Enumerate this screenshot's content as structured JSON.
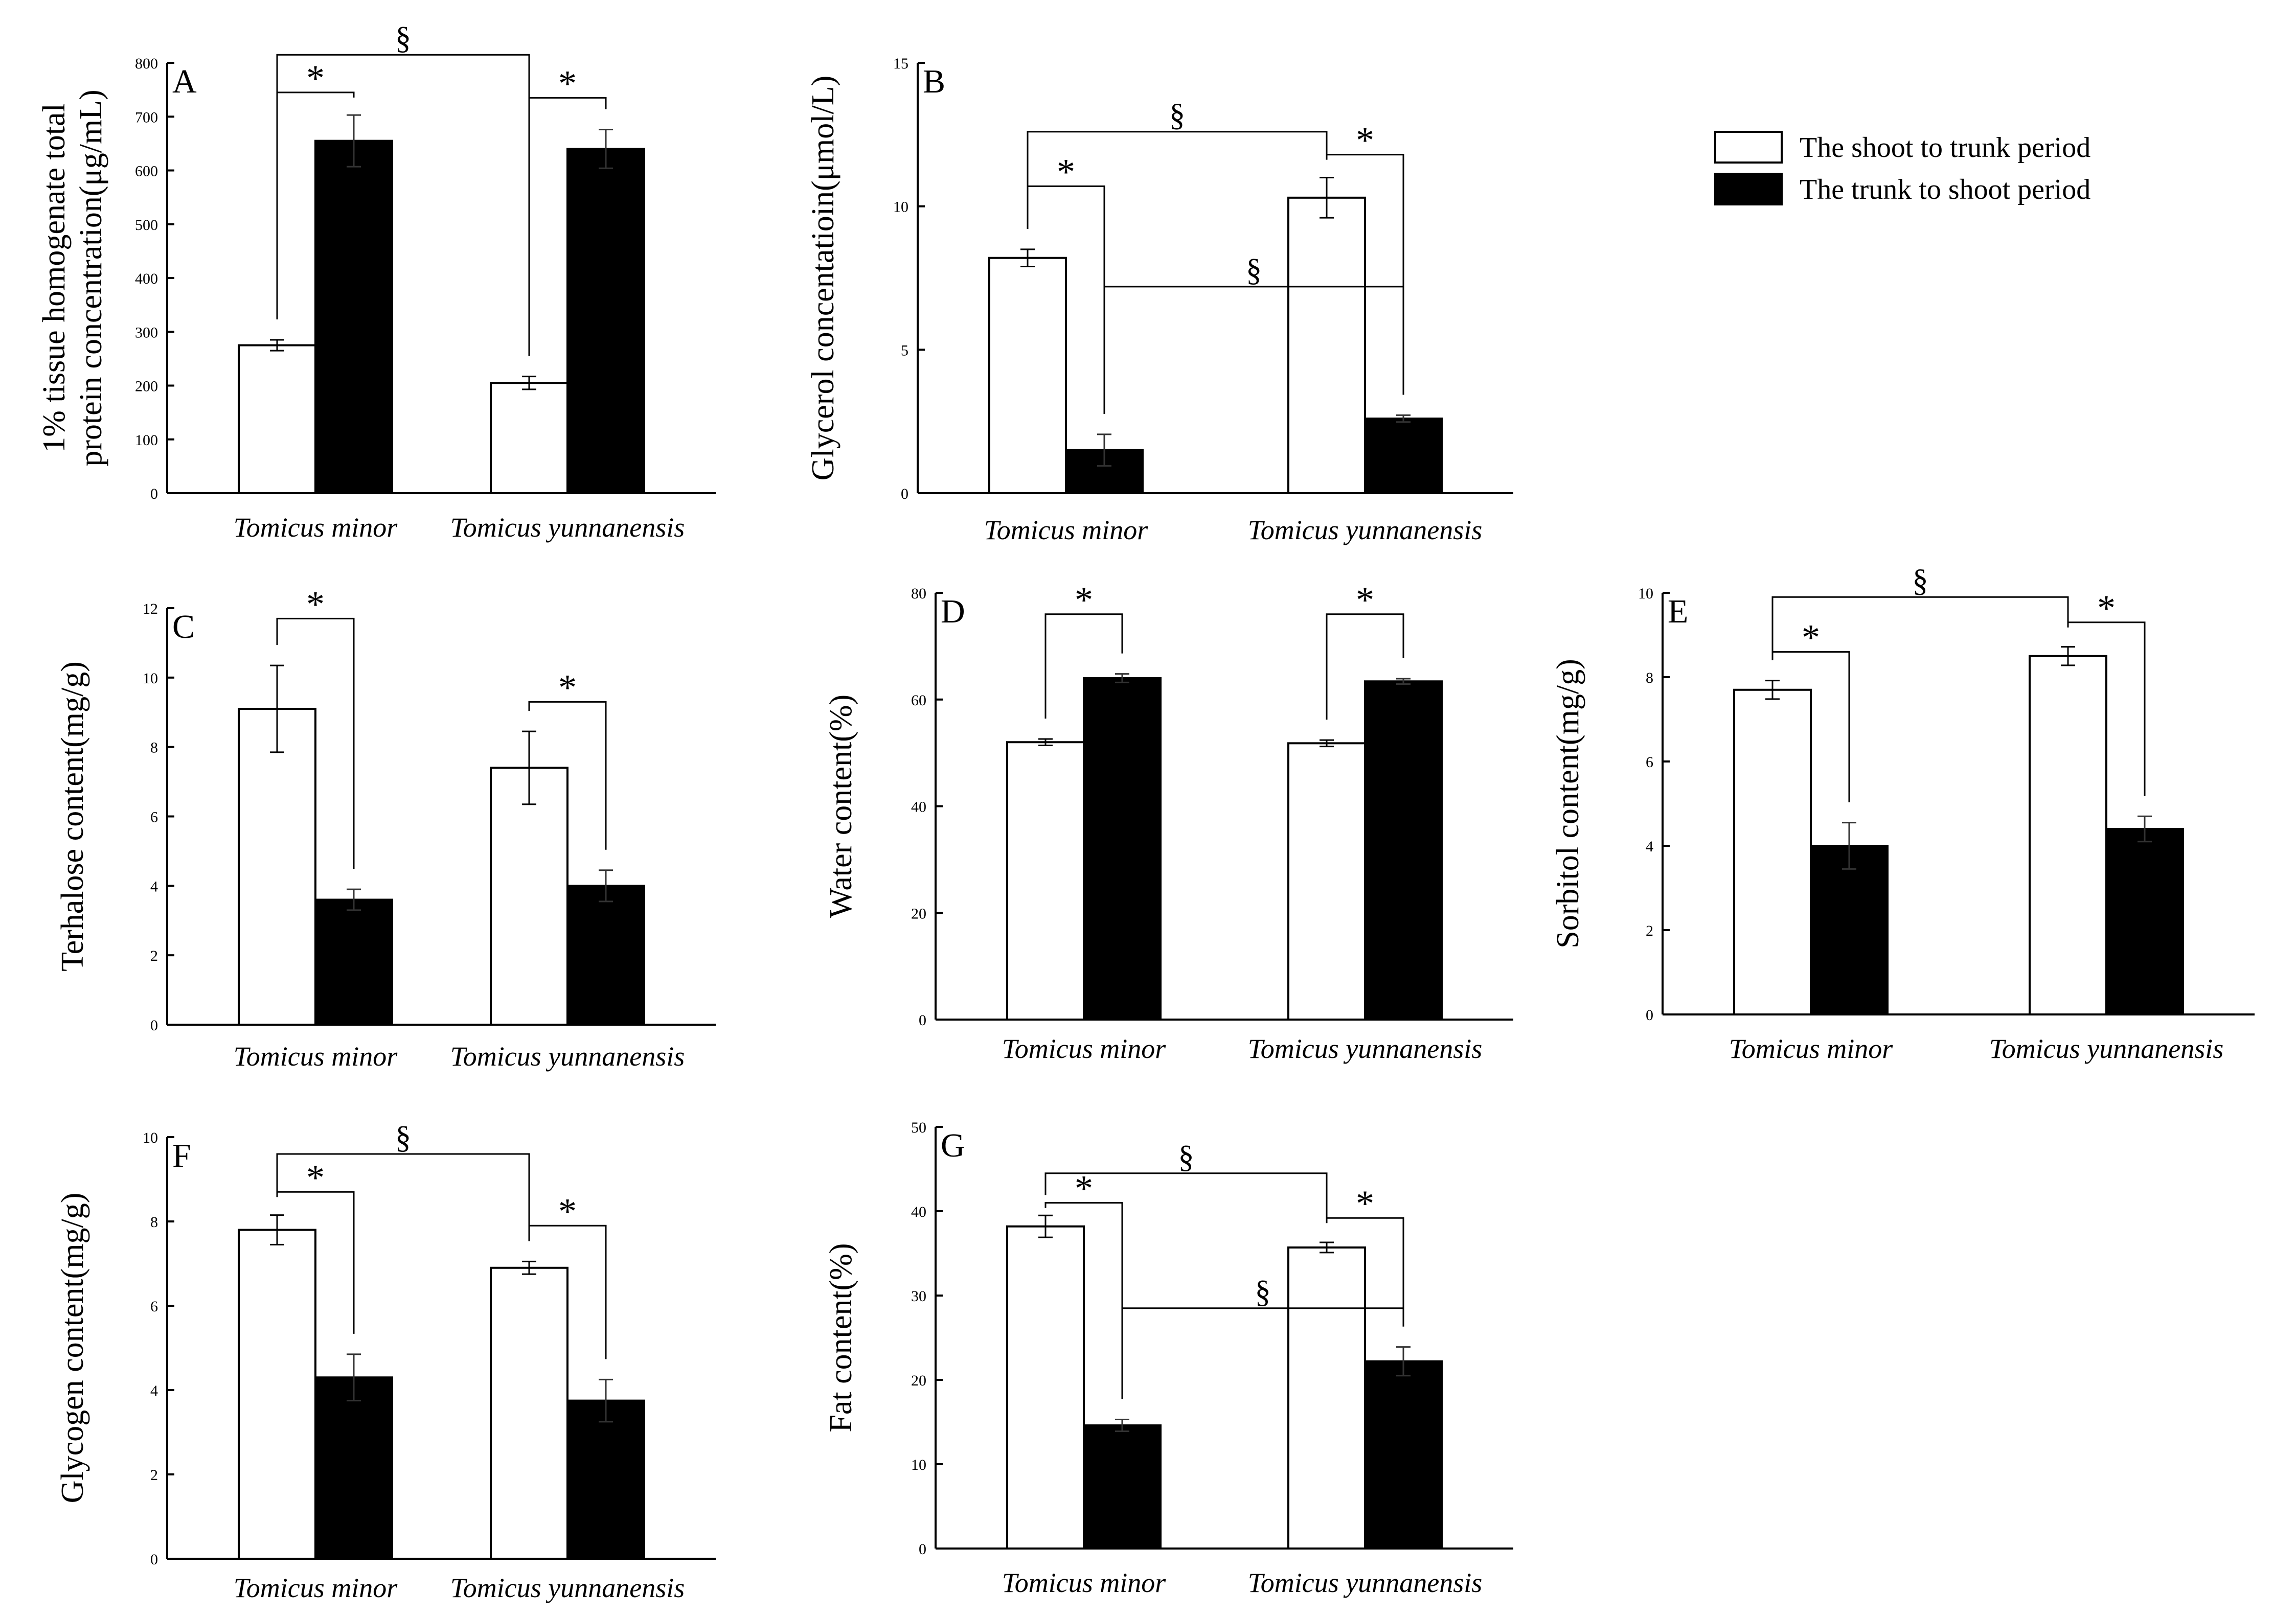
{
  "legend": {
    "items": [
      {
        "label": "The shoot to trunk period",
        "color": "#ffffff"
      },
      {
        "label": "The trunk to shoot period",
        "color": "#000000"
      }
    ]
  },
  "chart_data": [
    {
      "panel": "A",
      "type": "bar",
      "ylabel_lines": [
        "1% tissue homogenate total",
        "protein concentration(μg/mL)"
      ],
      "categories": [
        "Tomicus minor",
        "Tomicus yunnanensis"
      ],
      "ylim": [
        0,
        800
      ],
      "yticks": [
        0,
        100,
        200,
        300,
        400,
        500,
        600,
        700,
        800
      ],
      "series": [
        {
          "name": "The shoot to trunk period",
          "values": [
            275,
            205
          ],
          "errors": [
            10,
            12
          ]
        },
        {
          "name": "The trunk to shoot period",
          "values": [
            655,
            640
          ],
          "errors": [
            48,
            36
          ]
        }
      ],
      "annotations": [
        {
          "symbol": "*",
          "type": "within",
          "group": 0,
          "top": 745
        },
        {
          "symbol": "*",
          "type": "within",
          "group": 1,
          "top": 735
        },
        {
          "symbol": "§",
          "type": "across",
          "series": 0,
          "top": 815
        }
      ]
    },
    {
      "panel": "B",
      "type": "bar",
      "ylabel_lines": [
        "Glycerol concentatioin(μmol/L)"
      ],
      "categories": [
        "Tomicus minor",
        "Tomicus yunnanensis"
      ],
      "ylim": [
        0,
        15
      ],
      "yticks": [
        0,
        5,
        10,
        15
      ],
      "series": [
        {
          "name": "The shoot to trunk period",
          "values": [
            8.2,
            10.3
          ],
          "errors": [
            0.3,
            0.7
          ]
        },
        {
          "name": "The trunk to shoot period",
          "values": [
            1.5,
            2.6
          ],
          "errors": [
            0.55,
            0.12
          ]
        }
      ],
      "annotations": [
        {
          "symbol": "*",
          "type": "within",
          "group": 0,
          "top": 10.7
        },
        {
          "symbol": "*",
          "type": "within",
          "group": 1,
          "top": 11.8
        },
        {
          "symbol": "§",
          "type": "across",
          "series": 0,
          "top": 12.6
        },
        {
          "symbol": "§",
          "type": "across",
          "series": 1,
          "top": 7.2
        }
      ]
    },
    {
      "panel": "C",
      "type": "bar",
      "ylabel_lines": [
        "Terhalose content(mg/g)"
      ],
      "categories": [
        "Tomicus minor",
        "Tomicus yunnanensis"
      ],
      "ylim": [
        0,
        12
      ],
      "yticks": [
        0,
        2,
        4,
        6,
        8,
        10,
        12
      ],
      "series": [
        {
          "name": "The shoot to trunk period",
          "values": [
            9.1,
            7.4
          ],
          "errors": [
            1.25,
            1.05
          ]
        },
        {
          "name": "The trunk to shoot period",
          "values": [
            3.6,
            4.0
          ],
          "errors": [
            0.3,
            0.45
          ]
        }
      ],
      "annotations": [
        {
          "symbol": "*",
          "type": "within",
          "group": 0,
          "top": 11.7
        },
        {
          "symbol": "*",
          "type": "within",
          "group": 1,
          "top": 9.3
        }
      ]
    },
    {
      "panel": "D",
      "type": "bar",
      "ylabel_lines": [
        "Water content(%)"
      ],
      "categories": [
        "Tomicus minor",
        "Tomicus yunnanensis"
      ],
      "ylim": [
        0,
        80
      ],
      "yticks": [
        0,
        20,
        40,
        60,
        80
      ],
      "series": [
        {
          "name": "The shoot to trunk period",
          "values": [
            52,
            51.8
          ],
          "errors": [
            0.6,
            0.6
          ]
        },
        {
          "name": "The trunk to shoot period",
          "values": [
            64,
            63.4
          ],
          "errors": [
            0.8,
            0.5
          ]
        }
      ],
      "annotations": [
        {
          "symbol": "*",
          "type": "within",
          "group": 0,
          "top": 76
        },
        {
          "symbol": "*",
          "type": "within",
          "group": 1,
          "top": 76
        }
      ]
    },
    {
      "panel": "E",
      "type": "bar",
      "ylabel_lines": [
        "Sorbitol content(mg/g)"
      ],
      "categories": [
        "Tomicus minor",
        "Tomicus yunnanensis"
      ],
      "ylim": [
        0,
        10
      ],
      "yticks": [
        0,
        2,
        4,
        6,
        8,
        10
      ],
      "series": [
        {
          "name": "The shoot to trunk period",
          "values": [
            7.7,
            8.5
          ],
          "errors": [
            0.22,
            0.22
          ]
        },
        {
          "name": "The trunk to shoot period",
          "values": [
            4.0,
            4.4
          ],
          "errors": [
            0.55,
            0.3
          ]
        }
      ],
      "annotations": [
        {
          "symbol": "*",
          "type": "within",
          "group": 0,
          "top": 8.6
        },
        {
          "symbol": "*",
          "type": "within",
          "group": 1,
          "top": 9.3
        },
        {
          "symbol": "§",
          "type": "across",
          "series": 0,
          "top": 9.9
        }
      ]
    },
    {
      "panel": "F",
      "type": "bar",
      "ylabel_lines": [
        "Glycogen content(mg/g)"
      ],
      "categories": [
        "Tomicus minor",
        "Tomicus yunnanensis"
      ],
      "ylim": [
        0,
        10
      ],
      "yticks": [
        0,
        2,
        4,
        6,
        8,
        10
      ],
      "series": [
        {
          "name": "The shoot to trunk period",
          "values": [
            7.8,
            6.9
          ],
          "errors": [
            0.35,
            0.15
          ]
        },
        {
          "name": "The trunk to shoot period",
          "values": [
            4.3,
            3.75
          ],
          "errors": [
            0.55,
            0.5
          ]
        }
      ],
      "annotations": [
        {
          "symbol": "*",
          "type": "within",
          "group": 0,
          "top": 8.7
        },
        {
          "symbol": "*",
          "type": "within",
          "group": 1,
          "top": 7.9
        },
        {
          "symbol": "§",
          "type": "across",
          "series": 0,
          "top": 9.6
        }
      ]
    },
    {
      "panel": "G",
      "type": "bar",
      "ylabel_lines": [
        "Fat content(%)"
      ],
      "categories": [
        "Tomicus minor",
        "Tomicus yunnanensis"
      ],
      "ylim": [
        0,
        50
      ],
      "yticks": [
        0,
        10,
        20,
        30,
        40,
        50
      ],
      "series": [
        {
          "name": "The shoot to trunk period",
          "values": [
            38.2,
            35.7
          ],
          "errors": [
            1.3,
            0.6
          ]
        },
        {
          "name": "The trunk to shoot period",
          "values": [
            14.6,
            22.2
          ],
          "errors": [
            0.7,
            1.7
          ]
        }
      ],
      "annotations": [
        {
          "symbol": "*",
          "type": "within",
          "group": 0,
          "top": 41.0
        },
        {
          "symbol": "*",
          "type": "within",
          "group": 1,
          "top": 39.2
        },
        {
          "symbol": "§",
          "type": "across",
          "series": 0,
          "top": 44.5
        },
        {
          "symbol": "§",
          "type": "across",
          "series": 1,
          "top": 28.5
        }
      ]
    }
  ]
}
